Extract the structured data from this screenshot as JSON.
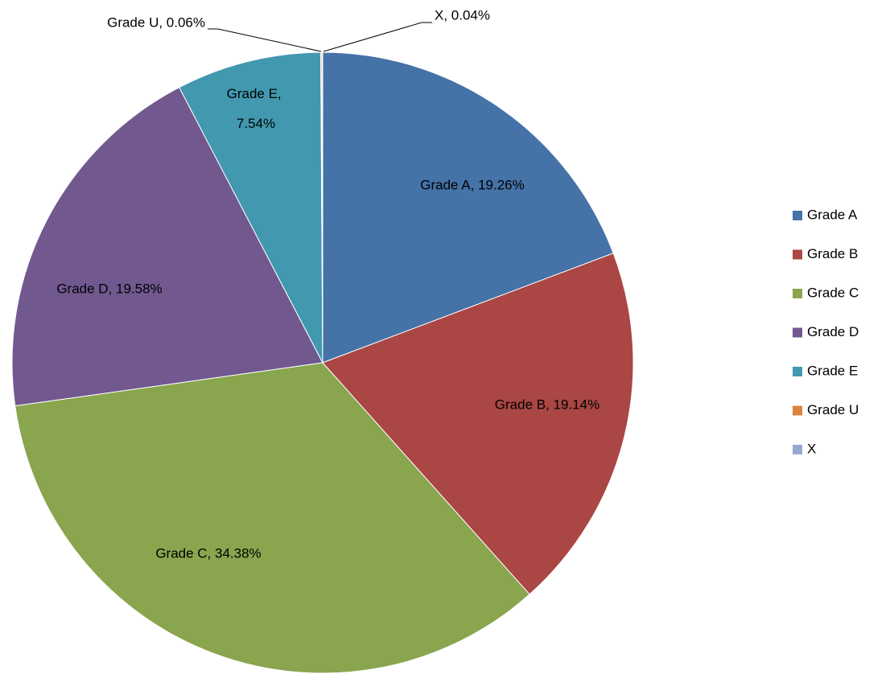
{
  "chart_data": {
    "type": "pie",
    "categories": [
      "Grade A",
      "Grade B",
      "Grade C",
      "Grade D",
      "Grade E",
      "Grade U",
      "X"
    ],
    "values": [
      19.26,
      19.14,
      34.38,
      19.58,
      7.54,
      0.06,
      0.04
    ],
    "value_labels": [
      "Grade A, 19.26%",
      "Grade B, 19.14%",
      "Grade C, 34.38%",
      "Grade D, 19.58%",
      "Grade E, 7.54%",
      "Grade U, 0.06%",
      "X, 0.04%"
    ],
    "colors": [
      "#4572a7",
      "#aa4643",
      "#89a54e",
      "#71588f",
      "#4198af",
      "#db843d",
      "#93a9cf"
    ],
    "legend": "right"
  }
}
